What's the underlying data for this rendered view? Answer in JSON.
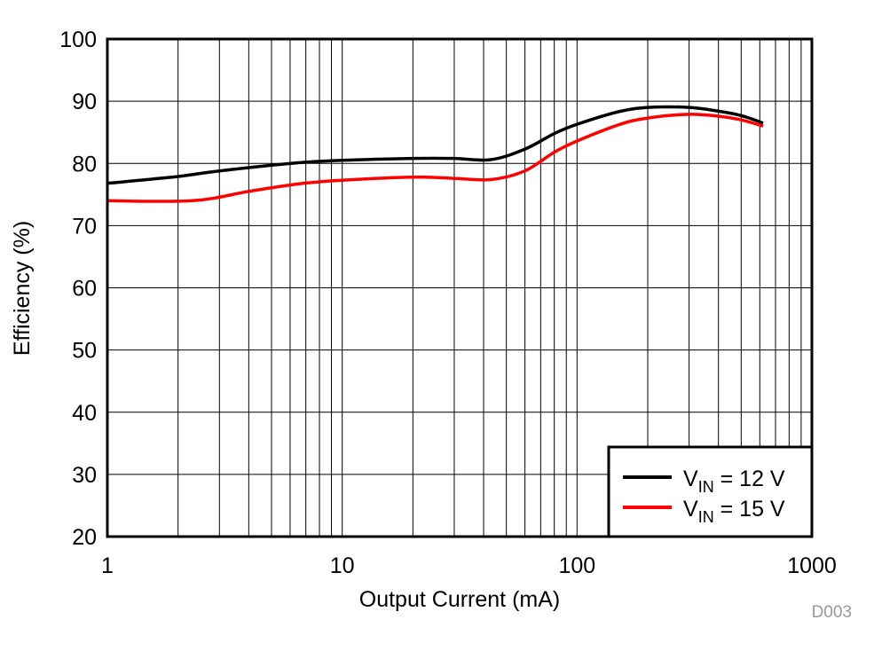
{
  "chart_data": {
    "type": "line",
    "title": "",
    "xlabel": "Output Current (mA)",
    "ylabel": "Efficiency (%)",
    "xscale": "log",
    "xlim": [
      1,
      1000
    ],
    "ylim": [
      20,
      100
    ],
    "xticks": [
      "1",
      "10",
      "100",
      "1000"
    ],
    "yticks": [
      "20",
      "30",
      "40",
      "50",
      "60",
      "70",
      "80",
      "90",
      "100"
    ],
    "grid": true,
    "legend_position": "lower right",
    "figure_code": "D003",
    "series": [
      {
        "name": "VIN = 12 V",
        "color": "#000000",
        "x": [
          1,
          2,
          3,
          6.5,
          10,
          20,
          30,
          43,
          60,
          80,
          100,
          150,
          200,
          300,
          400,
          500,
          620
        ],
        "values": [
          76.8,
          77.9,
          78.8,
          80.1,
          80.5,
          80.8,
          80.8,
          80.6,
          82.3,
          84.8,
          86.3,
          88.3,
          89.0,
          89.0,
          88.4,
          87.7,
          86.5
        ]
      },
      {
        "name": "VIN = 15 V",
        "color": "#ff0000",
        "x": [
          1,
          2.3,
          4,
          6.5,
          10,
          20,
          30,
          43,
          60,
          80,
          100,
          150,
          200,
          300,
          400,
          500,
          620
        ],
        "values": [
          74.0,
          74.0,
          75.5,
          76.7,
          77.3,
          77.8,
          77.6,
          77.4,
          78.8,
          81.8,
          83.6,
          86.2,
          87.3,
          87.9,
          87.6,
          87.0,
          86.0
        ]
      }
    ]
  },
  "legend": {
    "items": [
      {
        "prefix": "V",
        "sub": "IN",
        "suffix": " = 12 V",
        "color": "#000000"
      },
      {
        "prefix": "V",
        "sub": "IN",
        "suffix": " = 15 V",
        "color": "#ff0000"
      }
    ]
  }
}
